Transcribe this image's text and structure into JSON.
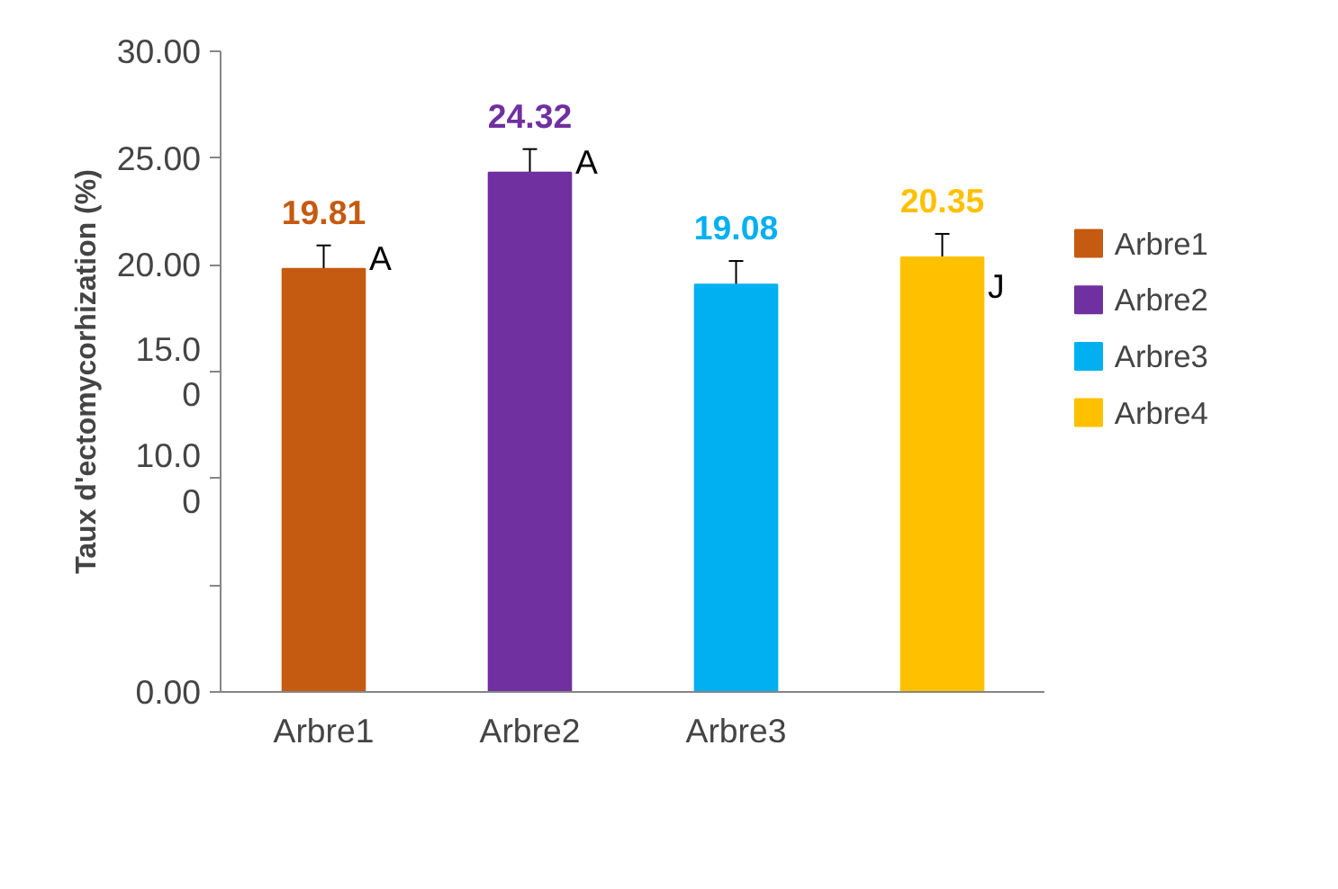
{
  "chart_data": {
    "type": "bar",
    "ylabel": "Taux d'ectomycorhization (%)",
    "categories": [
      "Arbre1",
      "Arbre2",
      "Arbre3",
      null
    ],
    "series": [
      {
        "name": "Arbre1",
        "color": "#c55a11",
        "values": [
          19.81,
          null,
          null,
          null
        ],
        "errors": [
          1.1,
          null,
          null,
          null
        ]
      },
      {
        "name": "Arbre2",
        "color": "#7030a0",
        "values": [
          null,
          24.32,
          null,
          null
        ],
        "errors": [
          null,
          1.1,
          null,
          null
        ]
      },
      {
        "name": "Arbre3",
        "color": "#00b0f0",
        "values": [
          null,
          null,
          19.08,
          null
        ],
        "errors": [
          null,
          null,
          1.1,
          null
        ]
      },
      {
        "name": "Arbre4",
        "color": "#ffc000",
        "values": [
          null,
          null,
          null,
          20.35
        ],
        "errors": [
          null,
          null,
          null,
          1.1
        ]
      }
    ],
    "ylim": [
      0,
      30
    ],
    "yticks": [
      {
        "value": 0,
        "label": "0.00"
      },
      {
        "value": 5,
        "label": null
      },
      {
        "value": 10,
        "label": "10.0\n0"
      },
      {
        "value": 15,
        "label": "15.0\n0"
      },
      {
        "value": 20,
        "label": "20.00"
      },
      {
        "value": 25,
        "label": "25.00"
      },
      {
        "value": 30,
        "label": "30.00"
      }
    ],
    "annotations": [
      {
        "text": "A",
        "x": "Arbre1",
        "y": 19.81
      },
      {
        "text": "A",
        "x": "Arbre2",
        "y": 24.32
      },
      "J"
    ],
    "data_labels": true,
    "grid": false,
    "legend": "right"
  }
}
